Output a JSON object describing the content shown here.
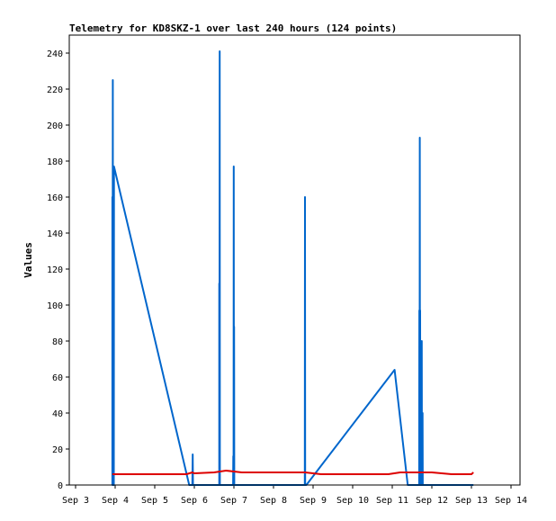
{
  "chart_data": {
    "type": "line",
    "title": "Telemetry for KD8SKZ-1 over last 240 hours (124 points)",
    "ylabel": "Values",
    "xlabel": "",
    "ylim": [
      0,
      250
    ],
    "xlim": [
      0,
      11
    ],
    "x_ticks": [
      {
        "label": "Sep 3",
        "x": 0
      },
      {
        "label": "Sep 4",
        "x": 1
      },
      {
        "label": "Sep 5",
        "x": 2
      },
      {
        "label": "Sep 6",
        "x": 3
      },
      {
        "label": "Sep 7",
        "x": 4
      },
      {
        "label": "Sep 8",
        "x": 5
      },
      {
        "label": "Sep 9",
        "x": 6
      },
      {
        "label": "Sep 10",
        "x": 7
      },
      {
        "label": "Sep 11",
        "x": 8
      },
      {
        "label": "Sep 12",
        "x": 9
      },
      {
        "label": "Sep 13",
        "x": 10
      },
      {
        "label": "Sep 14",
        "x": 11
      }
    ],
    "y_ticks": [
      0,
      20,
      40,
      60,
      80,
      100,
      120,
      140,
      160,
      180,
      200,
      220,
      240
    ],
    "grid": false,
    "series": [
      {
        "color": "#0066cc",
        "points": [
          [
            0.93,
            0
          ],
          [
            0.93,
            160
          ],
          [
            0.935,
            0
          ],
          [
            0.94,
            225
          ],
          [
            0.945,
            0
          ],
          [
            0.95,
            175
          ],
          [
            0.96,
            0
          ],
          [
            0.965,
            0
          ],
          [
            0.97,
            177
          ],
          [
            2.87,
            0
          ],
          [
            2.95,
            0
          ],
          [
            2.96,
            17
          ],
          [
            2.965,
            0
          ],
          [
            3.63,
            0
          ],
          [
            3.63,
            112
          ],
          [
            3.635,
            0
          ],
          [
            3.64,
            241
          ],
          [
            3.645,
            0
          ],
          [
            3.98,
            0
          ],
          [
            3.985,
            16
          ],
          [
            3.99,
            0
          ],
          [
            3.995,
            177
          ],
          [
            4.0,
            0
          ],
          [
            4.005,
            88
          ],
          [
            4.01,
            0
          ],
          [
            5.79,
            0
          ],
          [
            5.795,
            160
          ],
          [
            5.8,
            0
          ],
          [
            5.83,
            0
          ],
          [
            8.06,
            64
          ],
          [
            8.39,
            0
          ],
          [
            8.68,
            0
          ],
          [
            8.685,
            97
          ],
          [
            8.69,
            0
          ],
          [
            8.695,
            193
          ],
          [
            8.7,
            0
          ],
          [
            8.705,
            97
          ],
          [
            8.71,
            0
          ],
          [
            8.72,
            0
          ],
          [
            8.725,
            48
          ],
          [
            8.73,
            0
          ],
          [
            8.74,
            0
          ],
          [
            8.745,
            80
          ],
          [
            8.75,
            0
          ],
          [
            8.76,
            0
          ],
          [
            8.765,
            40
          ],
          [
            8.77,
            0
          ],
          [
            9.0,
            0
          ],
          [
            10.0,
            0
          ],
          [
            10.05,
            0
          ]
        ]
      },
      {
        "color": "#dd0000",
        "points": [
          [
            0.93,
            6
          ],
          [
            2.8,
            6
          ],
          [
            2.95,
            7
          ],
          [
            3.0,
            6.5
          ],
          [
            3.5,
            7
          ],
          [
            3.8,
            8
          ],
          [
            4.2,
            7
          ],
          [
            5.8,
            7
          ],
          [
            6.2,
            6
          ],
          [
            7.9,
            6
          ],
          [
            8.2,
            7
          ],
          [
            9.0,
            7
          ],
          [
            9.5,
            6
          ],
          [
            10.0,
            6
          ],
          [
            10.05,
            7
          ]
        ]
      }
    ]
  }
}
